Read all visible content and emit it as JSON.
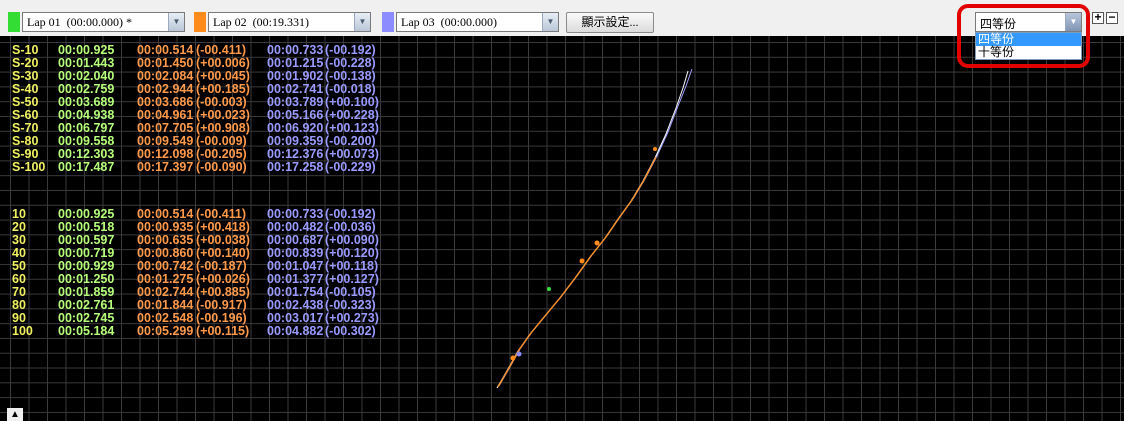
{
  "laps": [
    {
      "label": "Lap 01  (00:00.000) *",
      "color": "#33dd33"
    },
    {
      "label": "Lap 02  (00:19.331)",
      "color": "#ff8c1a"
    },
    {
      "label": "Lap 03  (00:00.000)",
      "color": "#8c8cff"
    }
  ],
  "settings_button": "顯示設定...",
  "divider": {
    "selected": "四等份",
    "options": [
      "四等份",
      "十等份"
    ]
  },
  "zoom": {
    "plus": "+",
    "minus": "−"
  },
  "sector_table": [
    {
      "label": "S-10",
      "t1": "00:00.925",
      "t2": "00:00.514",
      "d2": "(-00.411)",
      "t3": "00:00.733",
      "d3": "(-00.192)"
    },
    {
      "label": "S-20",
      "t1": "00:01.443",
      "t2": "00:01.450",
      "d2": "(+00.006)",
      "t3": "00:01.215",
      "d3": "(-00.228)"
    },
    {
      "label": "S-30",
      "t1": "00:02.040",
      "t2": "00:02.084",
      "d2": "(+00.045)",
      "t3": "00:01.902",
      "d3": "(-00.138)"
    },
    {
      "label": "S-40",
      "t1": "00:02.759",
      "t2": "00:02.944",
      "d2": "(+00.185)",
      "t3": "00:02.741",
      "d3": "(-00.018)"
    },
    {
      "label": "S-50",
      "t1": "00:03.689",
      "t2": "00:03.686",
      "d2": "(-00.003)",
      "t3": "00:03.789",
      "d3": "(+00.100)"
    },
    {
      "label": "S-60",
      "t1": "00:04.938",
      "t2": "00:04.961",
      "d2": "(+00.023)",
      "t3": "00:05.166",
      "d3": "(+00.228)"
    },
    {
      "label": "S-70",
      "t1": "00:06.797",
      "t2": "00:07.705",
      "d2": "(+00.908)",
      "t3": "00:06.920",
      "d3": "(+00.123)"
    },
    {
      "label": "S-80",
      "t1": "00:09.558",
      "t2": "00:09.549",
      "d2": "(-00.009)",
      "t3": "00:09.359",
      "d3": "(-00.200)"
    },
    {
      "label": "S-90",
      "t1": "00:12.303",
      "t2": "00:12.098",
      "d2": "(-00.205)",
      "t3": "00:12.376",
      "d3": "(+00.073)"
    },
    {
      "label": "S-100",
      "t1": "00:17.487",
      "t2": "00:17.397",
      "d2": "(-00.090)",
      "t3": "00:17.258",
      "d3": "(-00.229)"
    }
  ],
  "split_table": [
    {
      "label": "10",
      "t1": "00:00.925",
      "t2": "00:00.514",
      "d2": "(-00.411)",
      "t3": "00:00.733",
      "d3": "(-00.192)"
    },
    {
      "label": "20",
      "t1": "00:00.518",
      "t2": "00:00.935",
      "d2": "(+00.418)",
      "t3": "00:00.482",
      "d3": "(-00.036)"
    },
    {
      "label": "30",
      "t1": "00:00.597",
      "t2": "00:00.635",
      "d2": "(+00.038)",
      "t3": "00:00.687",
      "d3": "(+00.090)"
    },
    {
      "label": "40",
      "t1": "00:00.719",
      "t2": "00:00.860",
      "d2": "(+00.140)",
      "t3": "00:00.839",
      "d3": "(+00.120)"
    },
    {
      "label": "50",
      "t1": "00:00.929",
      "t2": "00:00.742",
      "d2": "(-00.187)",
      "t3": "00:01.047",
      "d3": "(+00.118)"
    },
    {
      "label": "60",
      "t1": "00:01.250",
      "t2": "00:01.275",
      "d2": "(+00.026)",
      "t3": "00:01.377",
      "d3": "(+00.127)"
    },
    {
      "label": "70",
      "t1": "00:01.859",
      "t2": "00:02.744",
      "d2": "(+00.885)",
      "t3": "00:01.754",
      "d3": "(-00.105)"
    },
    {
      "label": "80",
      "t1": "00:02.761",
      "t2": "00:01.844",
      "d2": "(-00.917)",
      "t3": "00:02.438",
      "d3": "(-00.323)"
    },
    {
      "label": "90",
      "t1": "00:02.745",
      "t2": "00:02.548",
      "d2": "(-00.196)",
      "t3": "00:03.017",
      "d3": "(+00.273)"
    },
    {
      "label": "100",
      "t1": "00:05.184",
      "t2": "00:05.299",
      "d2": "(+00.115)",
      "t3": "00:04.882",
      "d3": "(-00.302)"
    }
  ],
  "collapse_icon": "chevron-up-icon"
}
